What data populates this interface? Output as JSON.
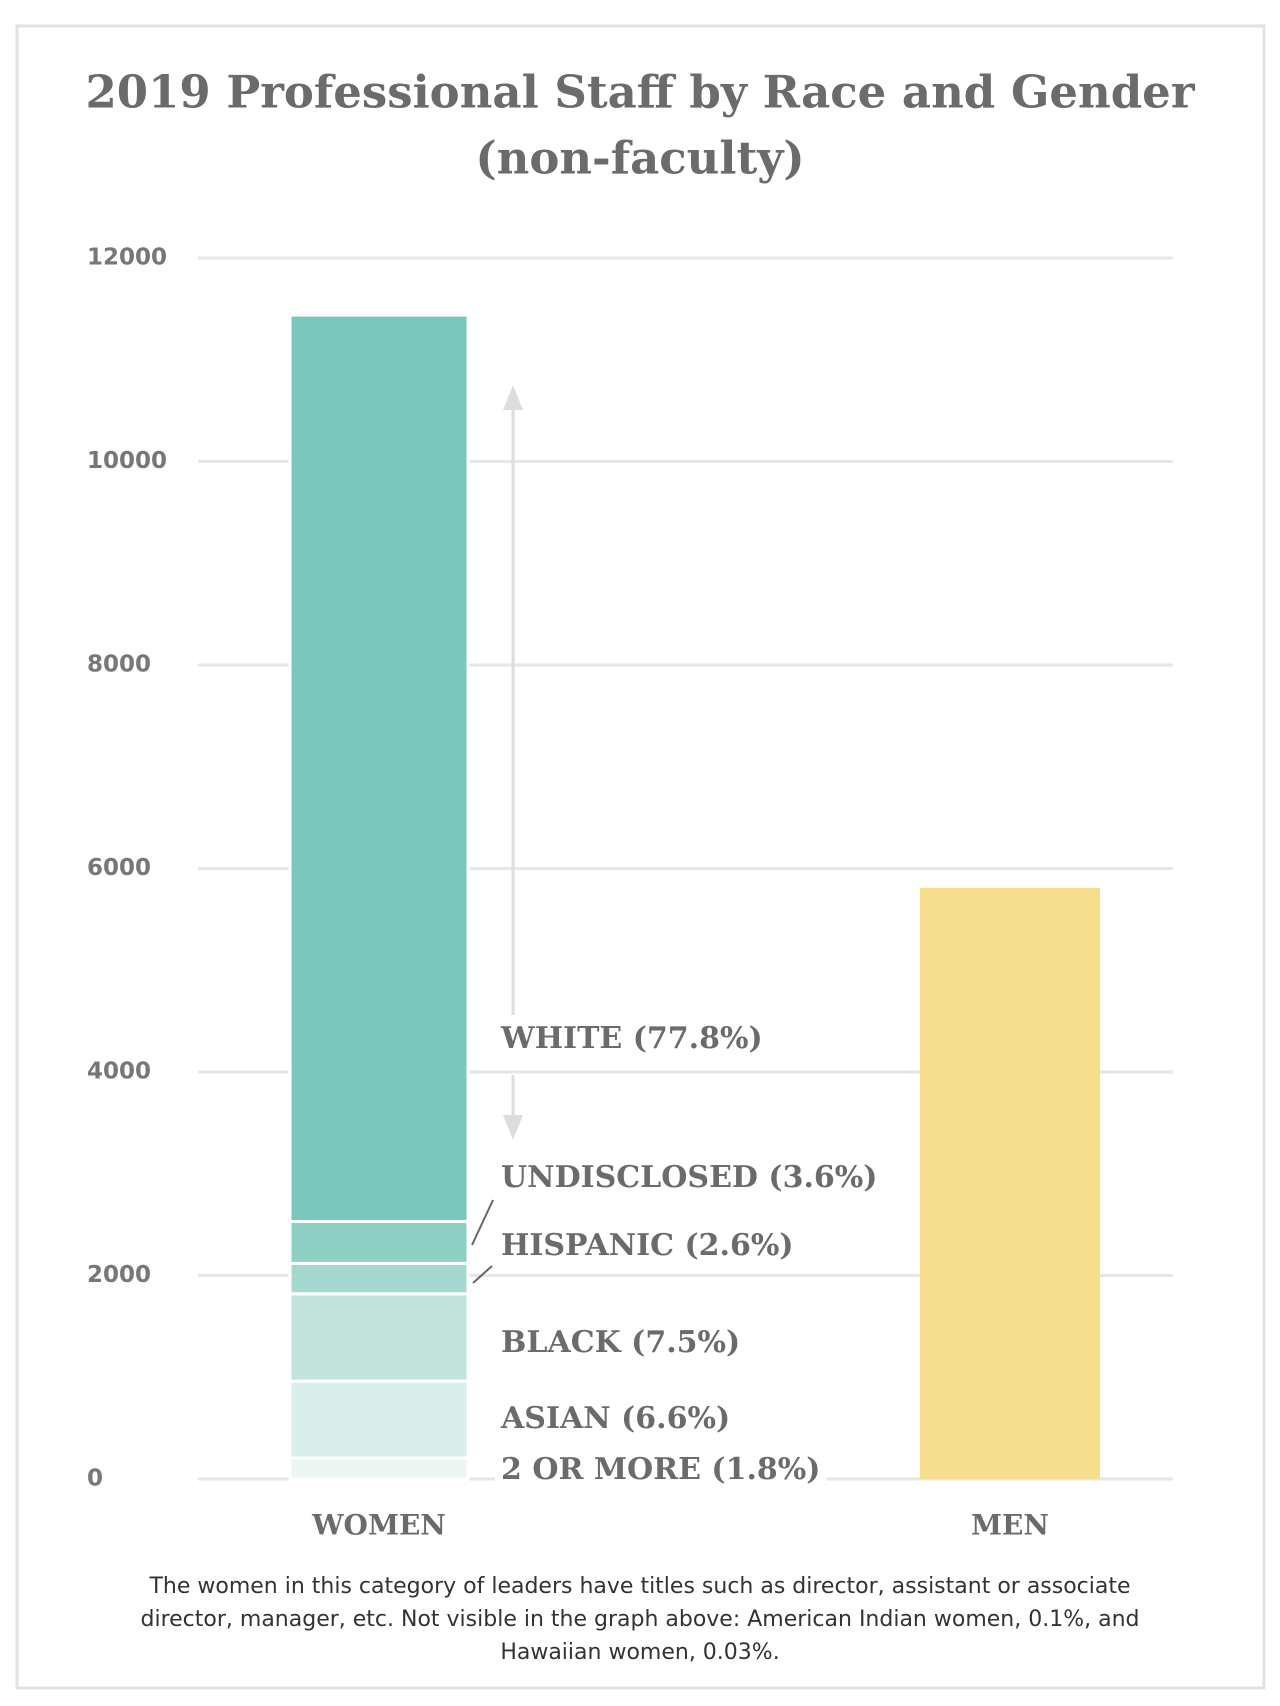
{
  "chart_data": {
    "type": "bar",
    "stacked": true,
    "title": "2019 Professional Staff by Race and Gender",
    "subtitle": "(non-faculty)",
    "categories": [
      "WOMEN",
      "MEN"
    ],
    "series": [
      {
        "name": "2 OR MORE (1.8%)",
        "color": "#ecf6f4",
        "values": [
          206,
          null
        ]
      },
      {
        "name": "ASIAN (6.6%)",
        "color": "#d9eeea",
        "values": [
          756,
          null
        ]
      },
      {
        "name": "BLACK (7.5%)",
        "color": "#c2e4dd",
        "values": [
          859,
          null
        ]
      },
      {
        "name": "HISPANIC (2.6%)",
        "color": "#a5d9cf",
        "values": [
          298,
          null
        ]
      },
      {
        "name": "UNDISCLOSED (3.6%)",
        "color": "#8fd0c4",
        "values": [
          412,
          null
        ]
      },
      {
        "name": "WHITE (77.8%)",
        "color": "#7ac8bb",
        "values": [
          8908,
          null
        ]
      },
      {
        "color": "#f5de8d",
        "values": [
          null,
          5810
        ]
      }
    ],
    "ylim": [
      0,
      12000
    ],
    "yticks": [
      0,
      2000,
      4000,
      6000,
      8000,
      10000,
      12000
    ],
    "grid": true,
    "note": "The women in this category of leaders have titles such as director, assistant or associate director, manager, etc. Not visible in the graph above: American Indian women, 0.1%, and Hawaiian women, 0.03%."
  }
}
